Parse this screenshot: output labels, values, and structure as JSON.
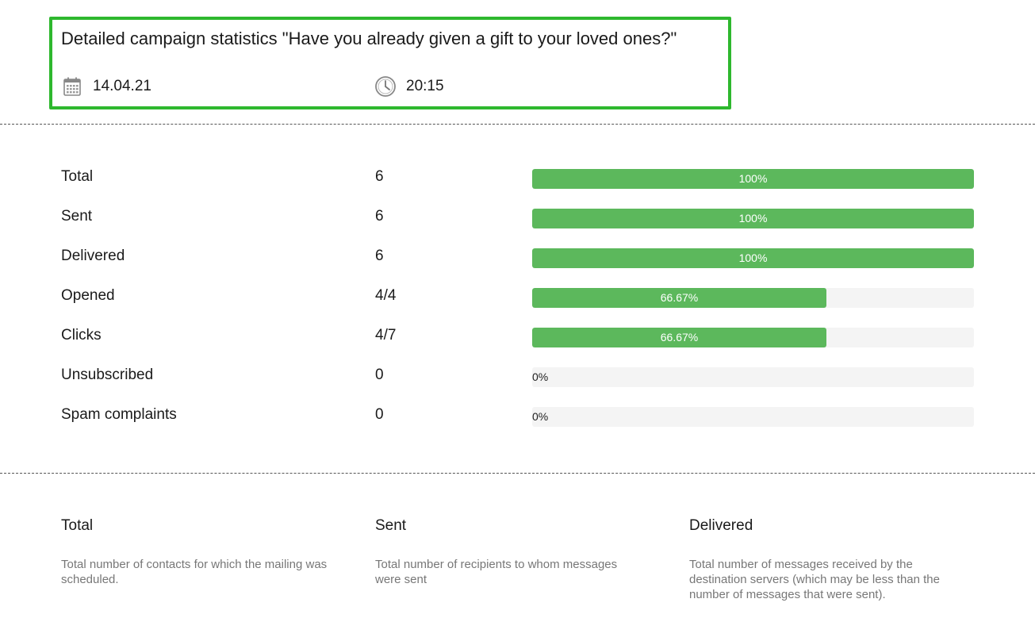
{
  "header": {
    "title": "Detailed campaign statistics \"Have you already given a gift to your loved ones?\"",
    "date": "14.04.21",
    "time": "20:15",
    "date_icon": "calendar-icon",
    "time_icon": "clock-icon",
    "highlight_color": "#2eb82e"
  },
  "stats": [
    {
      "label": "Total",
      "value": "6",
      "percent": 100,
      "bar_text": "100%"
    },
    {
      "label": "Sent",
      "value": "6",
      "percent": 100,
      "bar_text": "100%"
    },
    {
      "label": "Delivered",
      "value": "6",
      "percent": 100,
      "bar_text": "100%"
    },
    {
      "label": "Opened",
      "value": "4/4",
      "percent": 66.67,
      "bar_text": "66.67%"
    },
    {
      "label": "Clicks",
      "value": "4/7",
      "percent": 66.67,
      "bar_text": "66.67%"
    },
    {
      "label": "Unsubscribed",
      "value": "0",
      "percent": 0,
      "bar_text": "0%"
    },
    {
      "label": "Spam complaints",
      "value": "0",
      "percent": 0,
      "bar_text": "0%"
    }
  ],
  "bar_color": "#5cb85c",
  "definitions": [
    {
      "title": "Total",
      "description": "Total number of contacts for which the mailing was scheduled."
    },
    {
      "title": "Sent",
      "description": "Total number of recipients to whom messages were sent"
    },
    {
      "title": "Delivered",
      "description": "Total number of messages received by the destination servers (which may be less than the number of messages that were sent)."
    }
  ]
}
